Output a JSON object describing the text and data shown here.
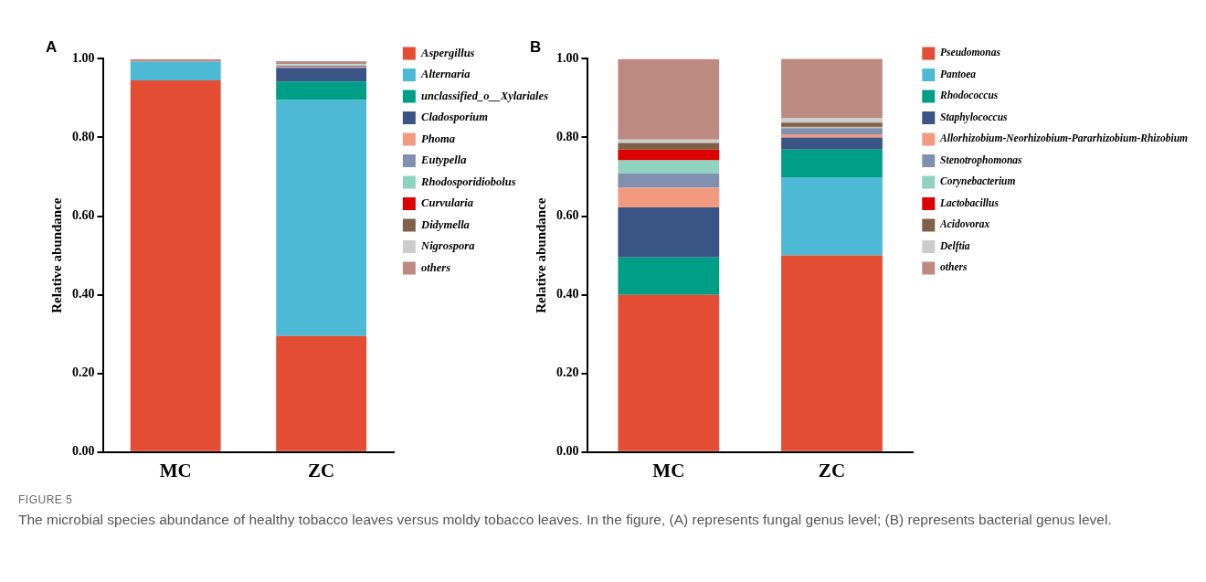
{
  "chart_data": [
    {
      "type": "bar",
      "title": "A",
      "ylabel": "Relative abundance",
      "categories": [
        "MC",
        "ZC"
      ],
      "stacked": true,
      "legend": "right",
      "grid": false,
      "ylim": [
        0,
        1
      ],
      "yticks": [
        {
          "value": 0,
          "label": "0.00"
        },
        {
          "value": 0.2,
          "label": "0.20"
        },
        {
          "value": 0.4,
          "label": "0.40"
        },
        {
          "value": 0.6,
          "label": "0.60"
        },
        {
          "value": 0.8,
          "label": "0.80"
        },
        {
          "value": 1,
          "label": "1.00"
        }
      ],
      "series": [
        {
          "name": "Aspergillus",
          "color": "#e34d33",
          "values": [
            0.945,
            0.295
          ]
        },
        {
          "name": "Alternaria",
          "color": "#4db9d5",
          "values": [
            0.048,
            0.6
          ]
        },
        {
          "name": "unclassified_o__Xylariales",
          "color": "#009e86",
          "values": [
            0,
            0.047
          ]
        },
        {
          "name": "Cladosporium",
          "color": "#3b5486",
          "values": [
            0,
            0.035
          ]
        },
        {
          "name": "Phoma",
          "color": "#f29a80",
          "values": [
            0,
            0.003
          ]
        },
        {
          "name": "Eutypella",
          "color": "#8290b0",
          "values": [
            0,
            0.003
          ]
        },
        {
          "name": "Rhodosporidiobolus",
          "color": "#90d2c0",
          "values": [
            0,
            0.002
          ]
        },
        {
          "name": "Curvularia",
          "color": "#dc0000",
          "values": [
            null,
            null
          ]
        },
        {
          "name": "Didymella",
          "color": "#7e6148",
          "values": [
            0,
            null
          ]
        },
        {
          "name": "Nigrospora",
          "color": "#cccccc",
          "values": [
            0,
            0.002
          ]
        },
        {
          "name": "others",
          "color": "#bc8a80",
          "values": [
            0.006,
            0.007
          ]
        }
      ],
      "annotations": [
        "FIGURE 5",
        "The microbial species abundance of healthy tobacco leaves versus moldy tobacco leaves. In the figure, (A) represents fungal genus level; (B) represents bacterial genus level."
      ]
    },
    {
      "type": "bar",
      "title": "B",
      "ylabel": "Relative abundance",
      "categories": [
        "MC",
        "ZC"
      ],
      "stacked": true,
      "legend": "right",
      "grid": false,
      "ylim": [
        0,
        1
      ],
      "yticks": [
        {
          "value": 0,
          "label": "0.00"
        },
        {
          "value": 0.2,
          "label": "0.20"
        },
        {
          "value": 0.4,
          "label": "0.40"
        },
        {
          "value": 0.6,
          "label": "0.60"
        },
        {
          "value": 0.8,
          "label": "0.80"
        },
        {
          "value": 1,
          "label": "1.00"
        }
      ],
      "series": [
        {
          "name": "Pseudomonas",
          "color": "#e34d33",
          "values": [
            0.4,
            0.5
          ]
        },
        {
          "name": "Pantoea",
          "color": "#4db9d5",
          "values": [
            0,
            0.199
          ]
        },
        {
          "name": "Rhodococcus",
          "color": "#009e86",
          "values": [
            0.095,
            0.07
          ]
        },
        {
          "name": "Staphylococcus",
          "color": "#3b5486",
          "values": [
            0.127,
            0.031
          ]
        },
        {
          "name": "Allorhizobium-Neorhizobium-Pararhizobium-Rhizobium",
          "color": "#f29a80",
          "values": [
            0.05,
            0.008
          ]
        },
        {
          "name": "Stenotrophomonas",
          "color": "#8290b0",
          "values": [
            0.036,
            0.016
          ]
        },
        {
          "name": "Corynebacterium",
          "color": "#90d2c0",
          "values": [
            0.034,
            0.002
          ]
        },
        {
          "name": "Lactobacillus",
          "color": "#dc0000",
          "values": [
            0.027,
            0.001
          ]
        },
        {
          "name": "Acidovorax",
          "color": "#7e6148",
          "values": [
            0.017,
            0.011
          ]
        },
        {
          "name": "Delftia",
          "color": "#cccccc",
          "values": [
            0.009,
            0.012
          ]
        },
        {
          "name": "others",
          "color": "#bc8a80",
          "values": [
            0.205,
            0.151
          ]
        }
      ]
    }
  ]
}
